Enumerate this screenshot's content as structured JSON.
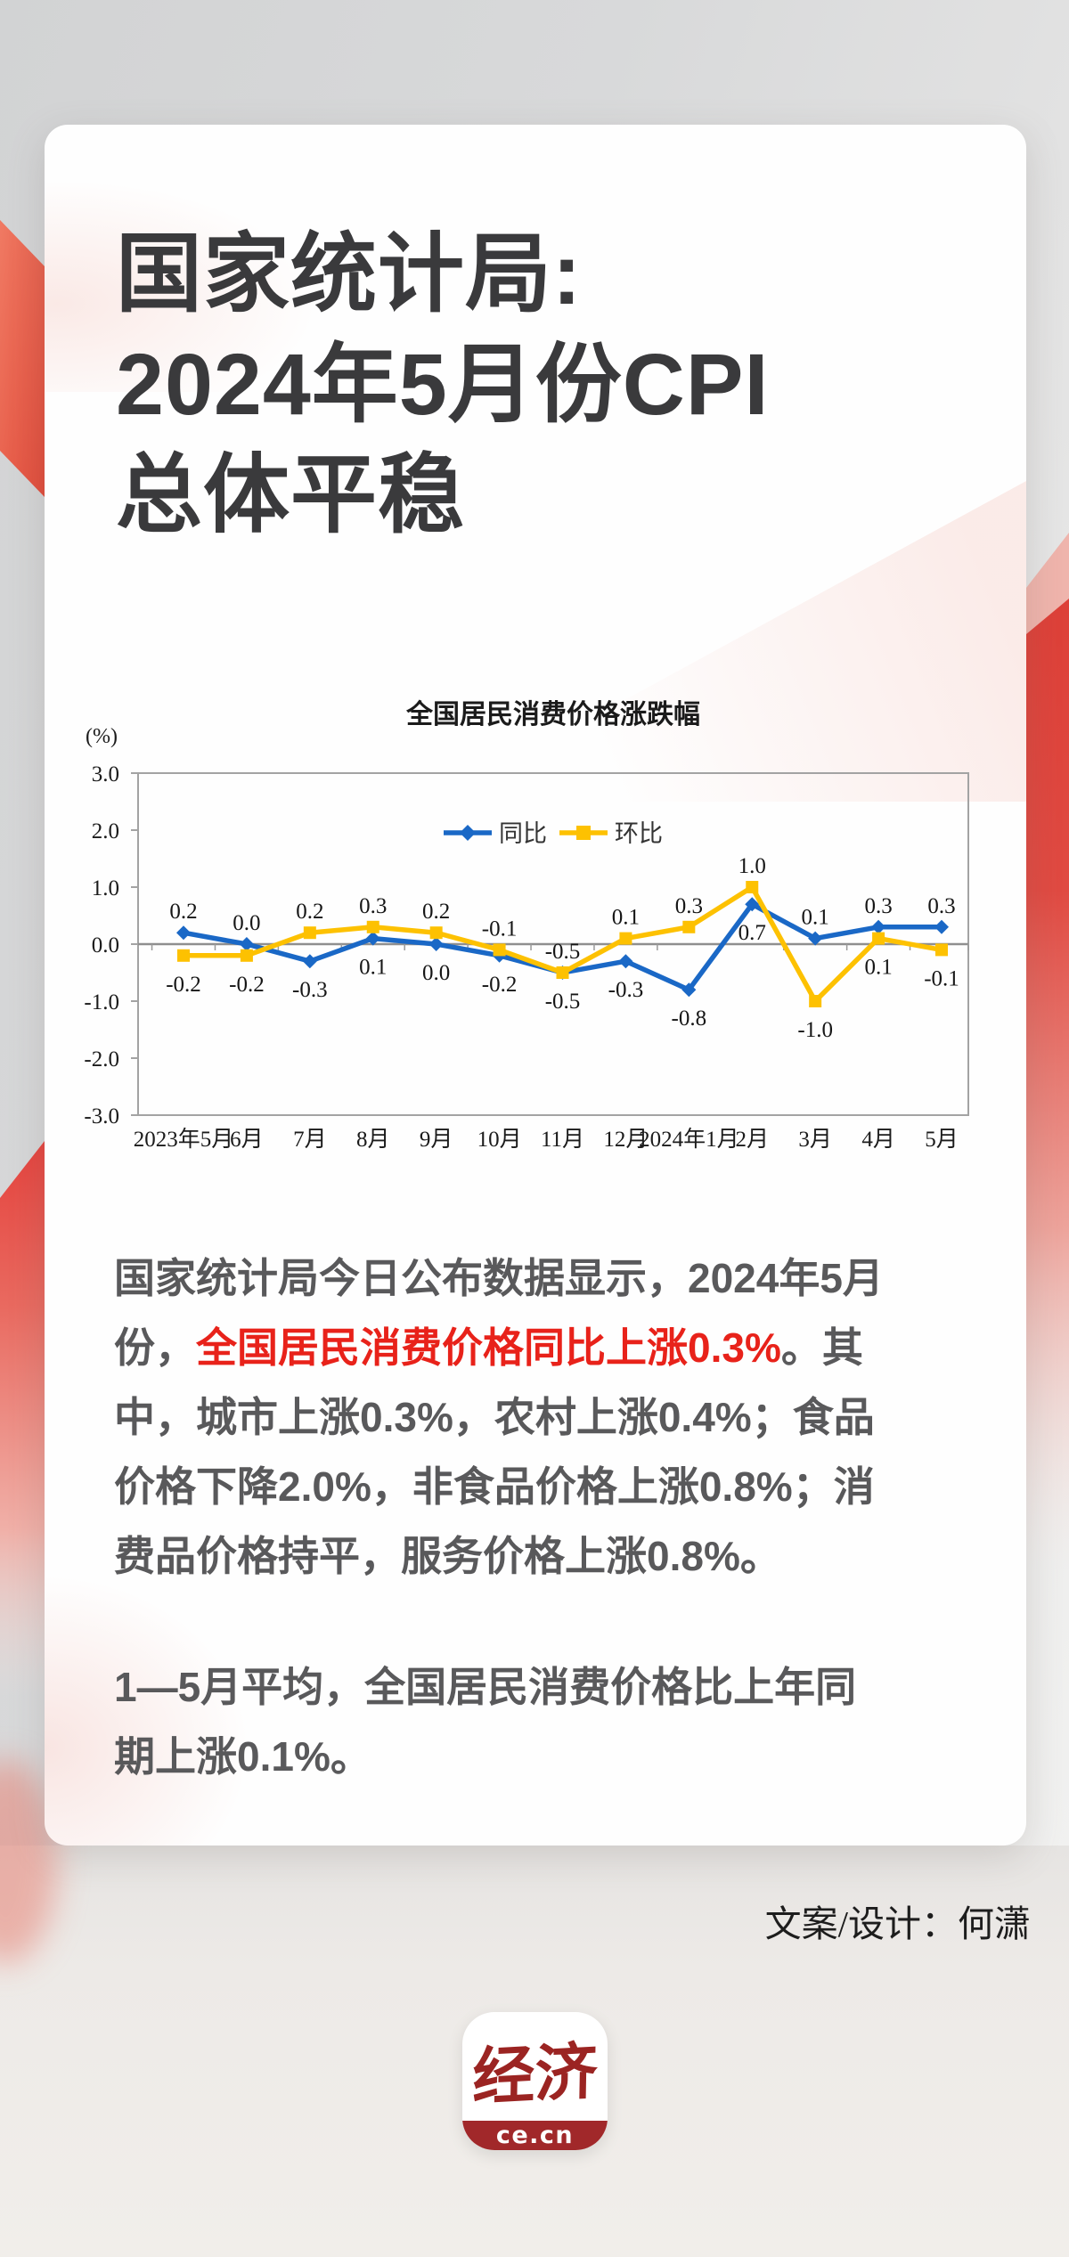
{
  "page": {
    "title_lines": [
      "国家统计局:",
      "2024年5月份CPI",
      "总体平稳"
    ],
    "credit": "文案/设计：何潇",
    "logo": {
      "characters": "经济",
      "domain": "ce.cn"
    }
  },
  "body": {
    "highlight_color": "#e8221a",
    "paragraphs": [
      {
        "lines": [
          [
            {
              "text": "国家统计局今日公布数据显示，2024年5月"
            }
          ],
          [
            {
              "text": "份，"
            },
            {
              "text": "全国居民消费价格同比上涨0.3%",
              "highlight": true
            },
            {
              "text": "。其"
            }
          ],
          [
            {
              "text": "中，城市上涨0.3%，农村上涨0.4%；食品"
            }
          ],
          [
            {
              "text": "价格下降2.0%，非食品价格上涨0.8%；消"
            }
          ],
          [
            {
              "text": "费品价格持平，服务价格上涨0.8%。"
            }
          ]
        ]
      },
      {
        "lines": [
          [
            {
              "text": "1—5月平均，全国居民消费价格比上年同"
            }
          ],
          [
            {
              "text": "期上涨0.1%。"
            }
          ]
        ]
      }
    ]
  },
  "chart_data": {
    "type": "line",
    "title": "全国居民消费价格涨跌幅",
    "unit_label": "(%)",
    "xlabel": "",
    "ylabel": "(%)",
    "ylim": [
      -3.0,
      3.0
    ],
    "yticks": [
      "3.0",
      "2.0",
      "1.0",
      "0.0",
      "-1.0",
      "-2.0",
      "-3.0"
    ],
    "grid": false,
    "legend_position": "top-center",
    "categories": [
      "2023年5月",
      "6月",
      "7月",
      "8月",
      "9月",
      "10月",
      "11月",
      "12月",
      "2024年1月",
      "2月",
      "3月",
      "4月",
      "5月"
    ],
    "series": [
      {
        "name": "同比",
        "color": "#1a68c6",
        "marker": "diamond",
        "values": [
          0.2,
          0.0,
          -0.3,
          0.1,
          0.0,
          -0.2,
          -0.5,
          -0.3,
          -0.8,
          0.7,
          0.1,
          0.3,
          0.3
        ],
        "labels": [
          "0.2",
          "0.0",
          "-0.3",
          "0.1",
          "0.0",
          "-0.2",
          "-0.5",
          "-0.3",
          "-0.8",
          "0.7",
          "0.1",
          "0.3",
          "0.3"
        ],
        "label_pos": [
          "above",
          "above",
          "below",
          "below",
          "below",
          "below",
          "below",
          "below",
          "below",
          "below",
          "above",
          "above",
          "above"
        ]
      },
      {
        "name": "环比",
        "color": "#fdc101",
        "marker": "square",
        "values": [
          -0.2,
          -0.2,
          0.2,
          0.3,
          0.2,
          -0.1,
          -0.5,
          0.1,
          0.3,
          1.0,
          -1.0,
          0.1,
          -0.1
        ],
        "labels": [
          "-0.2",
          "-0.2",
          "0.2",
          "0.3",
          "0.2",
          "-0.1",
          "-0.5",
          "0.1",
          "0.3",
          "1.0",
          "-1.0",
          "0.1",
          "-0.1"
        ],
        "label_pos": [
          "below",
          "below",
          "above",
          "above",
          "above",
          "above",
          "above",
          "above",
          "above",
          "above",
          "below",
          "below",
          "below"
        ]
      }
    ]
  },
  "colors": {
    "accent_red_strong": "#e0443c",
    "accent_red_soft": "#efb4ac",
    "card_bg": "#fefefe",
    "title_text": "#3a3a3c",
    "body_text": "#59595b",
    "logo_red": "#a1282a"
  }
}
